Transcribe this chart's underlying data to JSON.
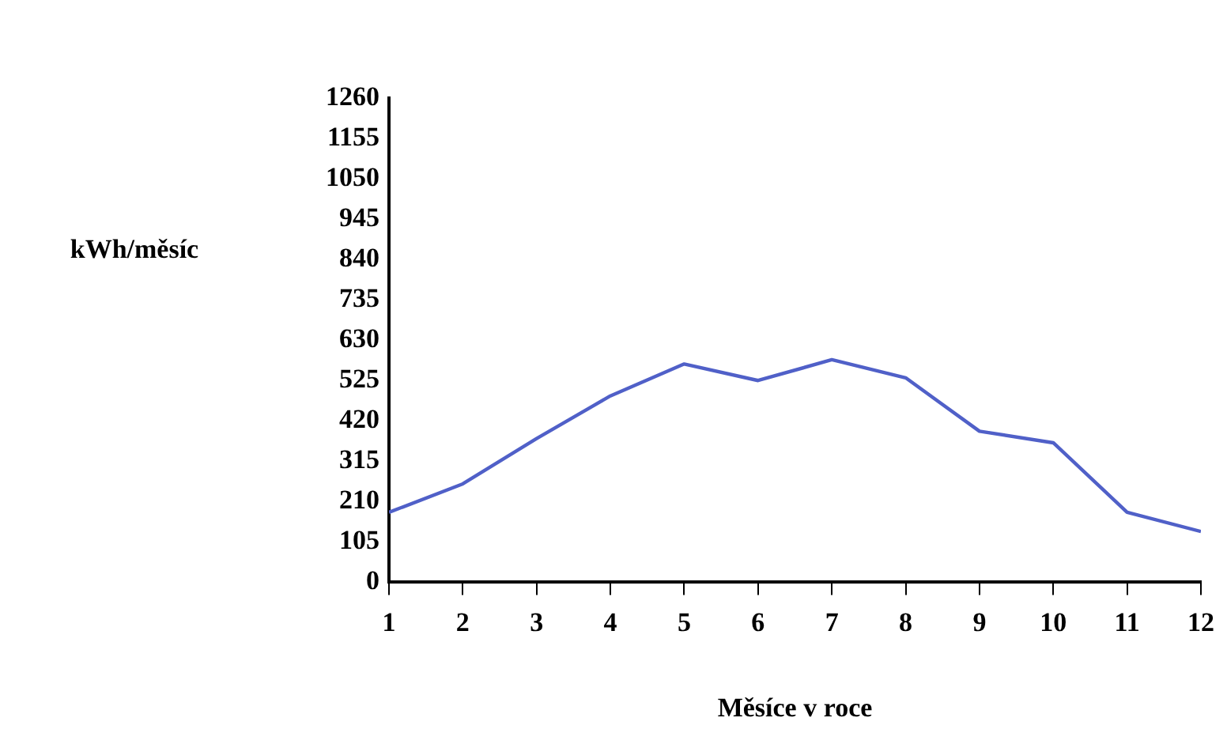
{
  "chart_data": {
    "type": "line",
    "xlabel": "Měsíce v roce",
    "ylabel": "kWh/měsíc",
    "x": [
      1,
      2,
      3,
      4,
      5,
      6,
      7,
      8,
      9,
      10,
      11,
      12
    ],
    "series": [
      {
        "color": "#5060c8",
        "values": [
          182,
          256,
          374,
          485,
          568,
          525,
          579,
          532,
          393,
          363,
          182,
          132
        ]
      }
    ],
    "xlim": [
      1,
      12
    ],
    "xticks": [
      1,
      2,
      3,
      4,
      5,
      6,
      7,
      8,
      9,
      10,
      11,
      12
    ],
    "ylim": [
      0,
      1260
    ],
    "yticks": [
      0,
      105,
      210,
      315,
      420,
      525,
      630,
      735,
      840,
      945,
      1050,
      1155,
      1260
    ],
    "grid": false,
    "legend": false,
    "marker": "none",
    "line_style": "solid"
  }
}
